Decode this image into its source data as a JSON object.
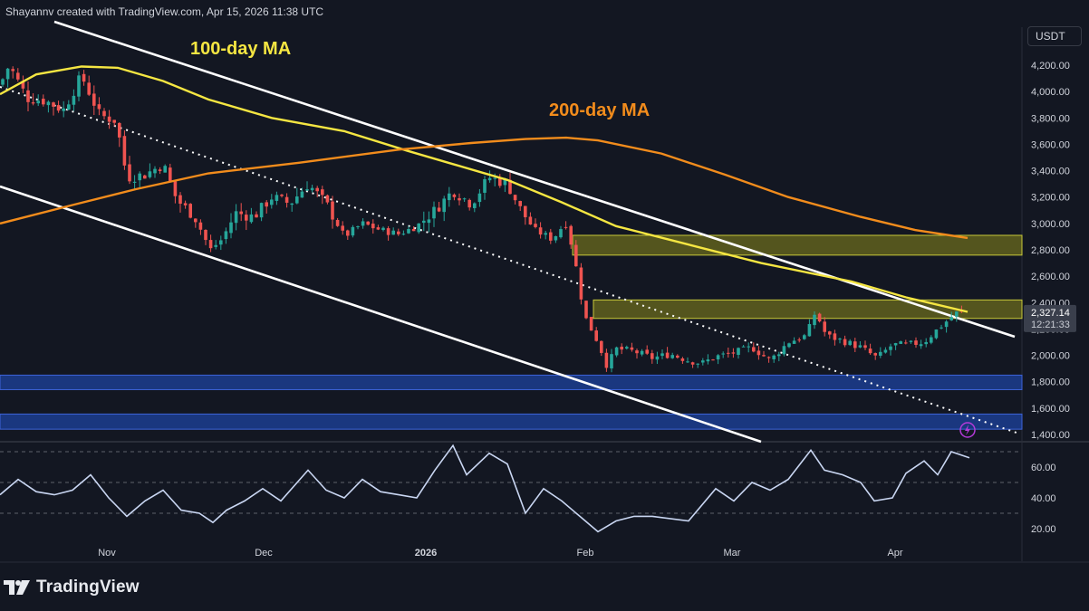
{
  "header": {
    "caption": "Shayannv created with TradingView.com, Apr 15, 2026 11:38 UTC"
  },
  "brand": {
    "name": "TradingView"
  },
  "currency": "USDT",
  "price_badge": {
    "price": "2,327.14",
    "countdown": "12:21:33"
  },
  "colors": {
    "background": "#131722",
    "up": "#26a69a",
    "down": "#ef5350",
    "ma100": "#f5e642",
    "ma200": "#f28c1c",
    "zone_yellow": "#6b6b1e",
    "zone_blue": "#1c3d8f",
    "rsi": "#c9d6f2"
  },
  "chart_data": [
    {
      "type": "candlestick",
      "series": [
        {
          "name": "100-day MA",
          "color": "#f5e642"
        },
        {
          "name": "200-day MA",
          "color": "#f28c1c"
        }
      ],
      "x_ticks": [
        "Nov",
        "Dec",
        "2026",
        "Feb",
        "Mar",
        "Apr"
      ],
      "y_ticks": [
        "4,200.00",
        "4,000.00",
        "3,800.00",
        "3,600.00",
        "3,400.00",
        "3,200.00",
        "3,000.00",
        "2,800.00",
        "2,600.00",
        "2,400.00",
        "2,200.00",
        "2,000.00",
        "1,800.00",
        "1,600.00",
        "1,400.00"
      ],
      "ylim": [
        1400,
        4200
      ],
      "annotations": [
        {
          "text": "100-day MA"
        },
        {
          "text": "200-day MA"
        }
      ],
      "zones": [
        {
          "kind": "resistance",
          "range": [
            2760,
            2910
          ],
          "color": "#6b6b1e"
        },
        {
          "kind": "resistance",
          "range": [
            2280,
            2420
          ],
          "color": "#6b6b1e"
        },
        {
          "kind": "support",
          "range": [
            1740,
            1850
          ],
          "color": "#1c3d8f"
        },
        {
          "kind": "support",
          "range": [
            1440,
            1555
          ],
          "color": "#1c3d8f"
        }
      ],
      "last_price": 2327.14
    },
    {
      "type": "line",
      "y_ticks": [
        "60.00",
        "40.00",
        "20.00"
      ],
      "ylim": [
        20,
        60
      ],
      "reference_lines": [
        70,
        50,
        30
      ]
    }
  ]
}
